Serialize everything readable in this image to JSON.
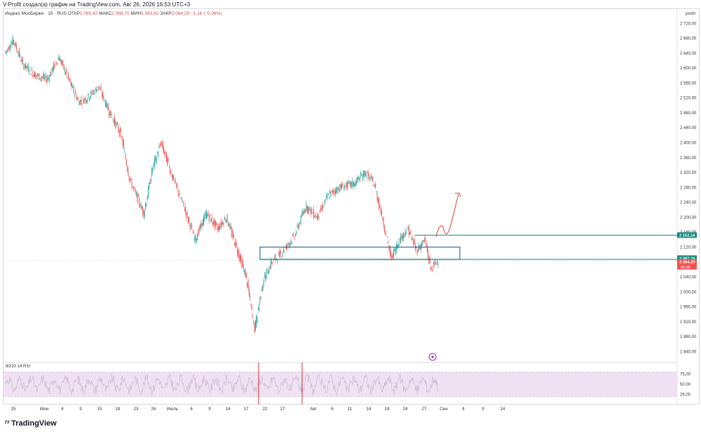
{
  "caption": "V-Profit создал(а) график на TradingView.com, Авг 26, 2026 16:53 UTC+3",
  "symbol": {
    "name": "Индекс МосБиржи · 15 · RUS",
    "open_label": "ОТКР",
    "open": "2 085,42",
    "high_label": "МАКС",
    "high": "2 088,70",
    "low_label": "МИН",
    "low": "2 083,62",
    "close_label": "ЗАКР",
    "close": "2 084,29",
    "change": "−1,16 (−0,06%)"
  },
  "scale_unit": "point",
  "rsi_label": "80/20 14 RSI",
  "brand": "TradingView",
  "colors": {
    "candle_up": "#26a69a",
    "candle_down": "#ef5350",
    "level_line": "#138a7c",
    "zone_border": "#2e6da4",
    "arrow": "#e53935",
    "price_tag_red": "#ef5350",
    "rsi_band": "#efe1f2",
    "rsi_line": "#c6b2cc"
  },
  "chart_data": {
    "type": "candlestick",
    "title": "Индекс МосБиржи · 15 · RUS",
    "y_ticks": [
      "2 720,00",
      "2 680,00",
      "2 640,00",
      "2 600,00",
      "2 560,00",
      "2 520,00",
      "2 480,00",
      "2 440,00",
      "2 400,00",
      "2 360,00",
      "2 320,00",
      "2 280,00",
      "2 240,00",
      "2 200,00",
      "2 160,00",
      "2 120,00",
      "2 080,00",
      "2 040,00",
      "2 000,00",
      "1 960,00",
      "1 920,00",
      "1 880,00",
      "1 840,00"
    ],
    "y_tick_values": [
      2720,
      2680,
      2640,
      2600,
      2560,
      2520,
      2480,
      2440,
      2400,
      2360,
      2320,
      2280,
      2240,
      2200,
      2160,
      2120,
      2080,
      2040,
      2000,
      1960,
      1920,
      1880,
      1840
    ],
    "ylim": [
      1820,
      2745
    ],
    "x_ticks": [
      "25",
      "Июн",
      "4",
      "9",
      "15",
      "18",
      "23",
      "26",
      "Июль",
      "6",
      "9",
      "14",
      "17",
      "22",
      "27",
      "Авг",
      "6",
      "11",
      "14",
      "19",
      "24",
      "27",
      "Сен",
      "4",
      "9",
      "14"
    ],
    "price_path": [
      {
        "d": 0,
        "p": 2640
      },
      {
        "d": 1.5,
        "p": 2675
      },
      {
        "d": 3.2,
        "p": 2610
      },
      {
        "d": 5.5,
        "p": 2580
      },
      {
        "d": 7.5,
        "p": 2570
      },
      {
        "d": 9.5,
        "p": 2630
      },
      {
        "d": 11.5,
        "p": 2560
      },
      {
        "d": 13,
        "p": 2510
      },
      {
        "d": 14.5,
        "p": 2520
      },
      {
        "d": 16.5,
        "p": 2550
      },
      {
        "d": 18.5,
        "p": 2480
      },
      {
        "d": 20.5,
        "p": 2420
      },
      {
        "d": 22,
        "p": 2300
      },
      {
        "d": 24.5,
        "p": 2210
      },
      {
        "d": 26,
        "p": 2330
      },
      {
        "d": 27.5,
        "p": 2400
      },
      {
        "d": 29.5,
        "p": 2310
      },
      {
        "d": 31.5,
        "p": 2230
      },
      {
        "d": 33.5,
        "p": 2140
      },
      {
        "d": 35.5,
        "p": 2210
      },
      {
        "d": 37.5,
        "p": 2170
      },
      {
        "d": 39,
        "p": 2200
      },
      {
        "d": 41,
        "p": 2110
      },
      {
        "d": 42.5,
        "p": 2040
      },
      {
        "d": 44,
        "p": 1900
      },
      {
        "d": 45.5,
        "p": 2030
      },
      {
        "d": 47,
        "p": 2080
      },
      {
        "d": 49,
        "p": 2110
      },
      {
        "d": 51,
        "p": 2150
      },
      {
        "d": 53,
        "p": 2230
      },
      {
        "d": 55,
        "p": 2200
      },
      {
        "d": 57,
        "p": 2260
      },
      {
        "d": 59,
        "p": 2280
      },
      {
        "d": 61.5,
        "p": 2290
      },
      {
        "d": 63.5,
        "p": 2320
      },
      {
        "d": 65,
        "p": 2290
      },
      {
        "d": 66.5,
        "p": 2200
      },
      {
        "d": 68,
        "p": 2090
      },
      {
        "d": 69.5,
        "p": 2140
      },
      {
        "d": 71,
        "p": 2170
      },
      {
        "d": 72.5,
        "p": 2110
      },
      {
        "d": 74,
        "p": 2140
      },
      {
        "d": 75,
        "p": 2060
      },
      {
        "d": 76.3,
        "p": 2085
      }
    ],
    "levels": [
      {
        "label": "2 152,16",
        "value": 2152.16,
        "tag": "green"
      },
      {
        "label": "2 087,26",
        "value": 2087.26,
        "tag": "green"
      },
      {
        "label": "2 084,29",
        "value": 2084.29,
        "tag": "red"
      }
    ],
    "countdown": "06:30",
    "zone": {
      "from_day": 44.8,
      "to_day": 80,
      "low": 2087,
      "high": 2120
    },
    "rsi": {
      "upper": 80,
      "lower": 20,
      "ticks": [
        "75,00",
        "50,00",
        "25,00"
      ],
      "tick_values": [
        75,
        50,
        25
      ]
    },
    "projection": "upward arrow from ~2150 to ~2265"
  }
}
